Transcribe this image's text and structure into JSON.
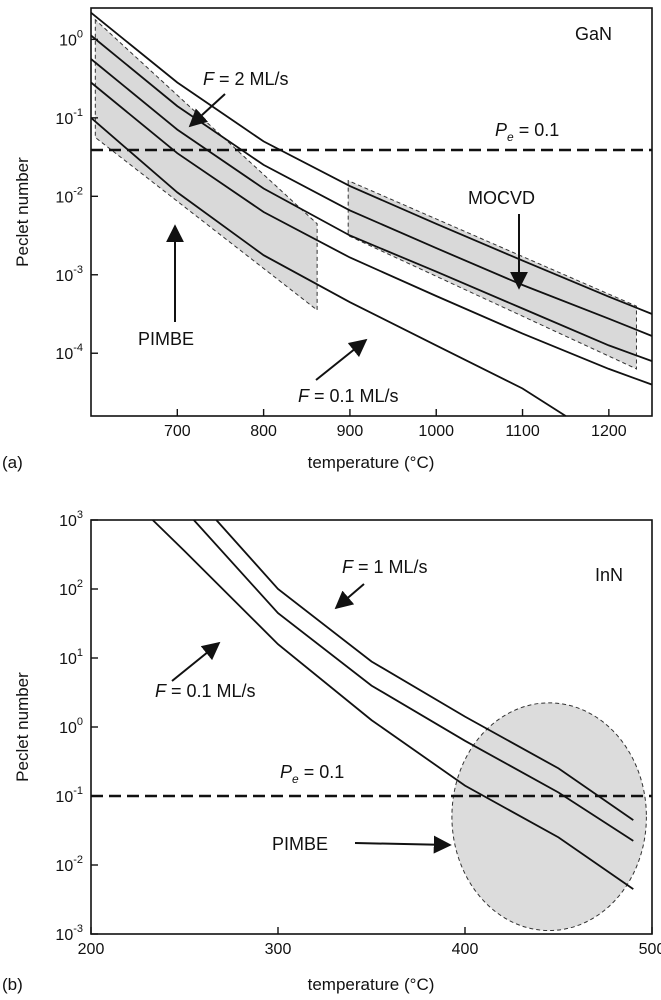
{
  "chart_data": [
    {
      "panel_label": "(a)",
      "type": "line",
      "material": "GaN",
      "xlabel": "temperature (°C)",
      "ylabel": "Peclet number",
      "xlim": [
        600,
        1250
      ],
      "yscale": "log",
      "ylim_exp": [
        -4.8,
        0.4
      ],
      "xticks": [
        700,
        800,
        900,
        1000,
        1100,
        1200
      ],
      "yticks": [
        {
          "base": "10",
          "exp": "-4",
          "value": -4
        },
        {
          "base": "10",
          "exp": "-3",
          "value": -3
        },
        {
          "base": "10",
          "exp": "-2",
          "value": -2
        },
        {
          "base": "10",
          "exp": "-1",
          "value": -1
        },
        {
          "base": "10",
          "exp": "0",
          "value": 0
        }
      ],
      "series": [
        {
          "x": [
            600,
            700,
            800,
            900,
            1000,
            1100,
            1200,
            1250
          ],
          "log10_y": [
            0.34,
            -0.55,
            -1.3,
            -1.87,
            -2.35,
            -2.82,
            -3.28,
            -3.5
          ]
        },
        {
          "x": [
            600,
            700,
            800,
            900,
            1000,
            1100,
            1200,
            1250
          ],
          "log10_y": [
            0.05,
            -0.85,
            -1.6,
            -2.18,
            -2.66,
            -3.13,
            -3.56,
            -3.78
          ]
        },
        {
          "x": [
            600,
            700,
            800,
            900,
            1000,
            1100,
            1200,
            1250
          ],
          "log10_y": [
            -0.25,
            -1.15,
            -1.9,
            -2.5,
            -2.96,
            -3.43,
            -3.9,
            -4.1
          ]
        },
        {
          "x": [
            600,
            700,
            800,
            900,
            1000,
            1100,
            1200,
            1250
          ],
          "log10_y": [
            -0.55,
            -1.45,
            -2.2,
            -2.78,
            -3.27,
            -3.75,
            -4.2,
            -4.4
          ]
        },
        {
          "x": [
            600,
            700,
            800,
            900,
            1000,
            1100,
            1150
          ],
          "log10_y": [
            -1.0,
            -1.95,
            -2.75,
            -3.35,
            -3.9,
            -4.45,
            -4.8
          ]
        }
      ],
      "threshold_line": {
        "log10_y": -1,
        "label_main": "P",
        "label_sub": "e",
        "label_tail": " = 0.1"
      },
      "regions": [
        {
          "label": "PIMBE",
          "x": [
            605,
            605,
            862,
            862
          ],
          "log10_y": [
            0.25,
            -1.25,
            -3.45,
            -2.35
          ]
        },
        {
          "label": "MOCVD",
          "x": [
            898,
            898,
            1232,
            1232
          ],
          "log10_y": [
            -1.8,
            -2.5,
            -4.2,
            -3.4
          ]
        }
      ],
      "annotations": [
        {
          "id": "f-high",
          "prefix": "F",
          "text": " = 2 ML/s"
        },
        {
          "id": "f-low",
          "prefix": "F",
          "text": " = 0.1 ML/s"
        },
        {
          "id": "mocvd",
          "prefix": "",
          "text": "MOCVD"
        },
        {
          "id": "pimbe",
          "prefix": "",
          "text": "PIMBE"
        }
      ]
    },
    {
      "panel_label": "(b)",
      "type": "line",
      "material": "InN",
      "xlabel": "temperature (°C)",
      "ylabel": "Peclet number",
      "xlim": [
        200,
        500
      ],
      "yscale": "log",
      "ylim_exp": [
        -3,
        3
      ],
      "xticks": [
        200,
        300,
        400,
        500
      ],
      "yticks": [
        {
          "base": "10",
          "exp": "-3",
          "value": -3
        },
        {
          "base": "10",
          "exp": "-2",
          "value": -2
        },
        {
          "base": "10",
          "exp": "-1",
          "value": -1
        },
        {
          "base": "10",
          "exp": "0",
          "value": 0
        },
        {
          "base": "10",
          "exp": "1",
          "value": 1
        },
        {
          "base": "10",
          "exp": "2",
          "value": 2
        },
        {
          "base": "10",
          "exp": "3",
          "value": 3
        }
      ],
      "series": [
        {
          "x": [
            267,
            300,
            350,
            400,
            450,
            490
          ],
          "log10_y": [
            3,
            2.0,
            0.95,
            0.15,
            -0.6,
            -1.35
          ]
        },
        {
          "x": [
            255,
            300,
            350,
            400,
            450,
            490
          ],
          "log10_y": [
            3,
            1.65,
            0.6,
            -0.2,
            -0.95,
            -1.65
          ]
        },
        {
          "x": [
            233,
            250,
            300,
            350,
            400,
            450,
            490
          ],
          "log10_y": [
            3,
            2.55,
            1.2,
            0.1,
            -0.85,
            -1.6,
            -2.35
          ]
        }
      ],
      "threshold_line": {
        "log10_y": -1,
        "label_main": "P",
        "label_sub": "e",
        "label_tail": " = 0.1"
      },
      "regions": [
        {
          "label": "PIMBE",
          "shape": "ellipse",
          "cx": 445,
          "cy_log10": -1.3,
          "rx_temp": 52,
          "ry_decades": 1.65
        }
      ],
      "annotations": [
        {
          "id": "f-high",
          "prefix": "F",
          "text": " = 1 ML/s"
        },
        {
          "id": "f-low",
          "prefix": "F",
          "text": " = 0.1 ML/s"
        },
        {
          "id": "pimbe",
          "prefix": "",
          "text": "PIMBE"
        }
      ]
    }
  ]
}
